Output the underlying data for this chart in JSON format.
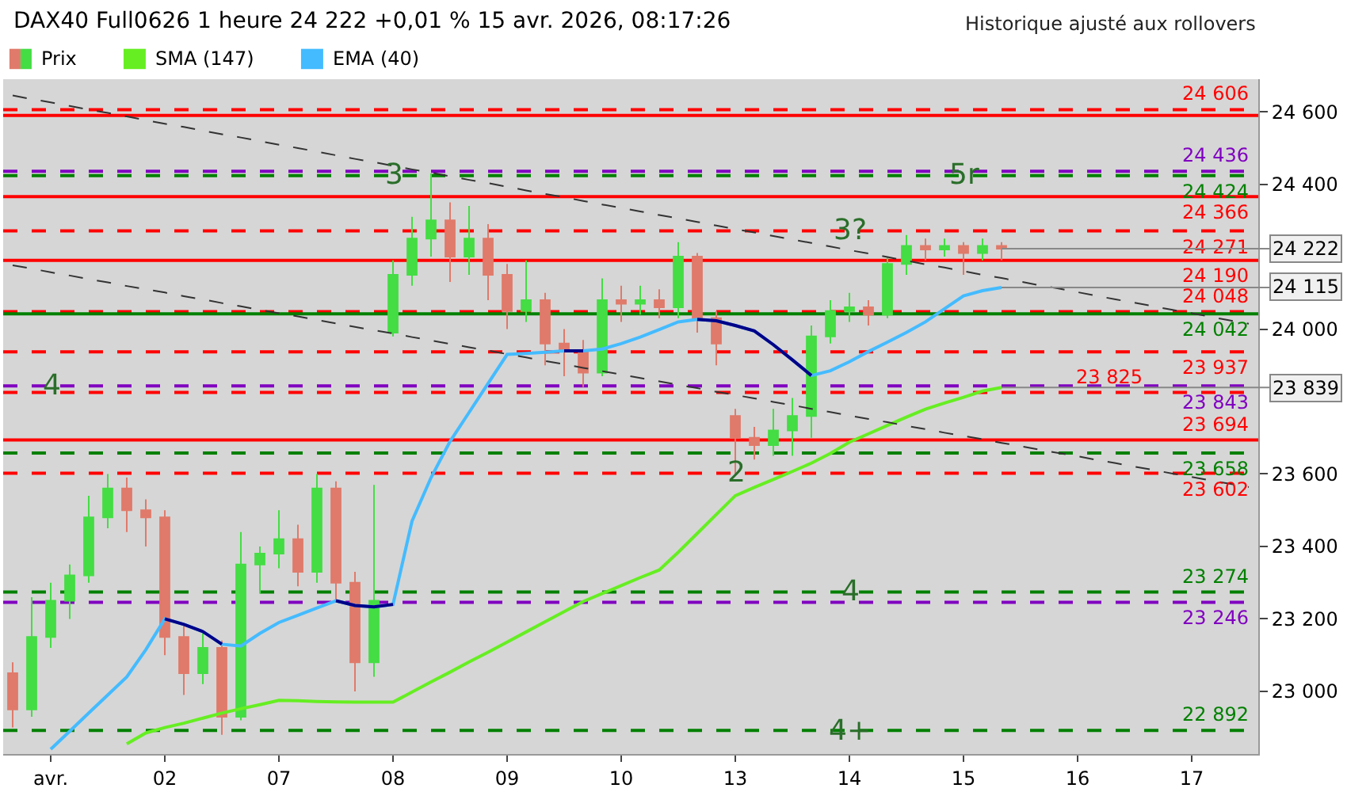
{
  "chart_data": {
    "type": "candlestick",
    "title": "DAX40 Full0626 1 heure 24 222 +0,01 % 15 avr. 2026, 08:17:26",
    "categories": [
      null,
      null,
      "avr.",
      null,
      null,
      null,
      null,
      null,
      "02",
      null,
      null,
      null,
      null,
      null,
      "07",
      null,
      null,
      null,
      null,
      null,
      "08",
      null,
      null,
      null,
      null,
      null,
      "09",
      null,
      null,
      null,
      null,
      null,
      "10",
      null,
      null,
      null,
      null,
      null,
      "13",
      null,
      null,
      null,
      null,
      null,
      "14",
      null,
      null,
      null,
      null,
      null,
      "15",
      null,
      null,
      null,
      null,
      null,
      "16",
      null,
      null,
      null,
      null,
      null,
      "17",
      null,
      null,
      null
    ],
    "ylim": [
      22827,
      24690
    ],
    "yticks": [
      {
        "value": 23000,
        "label": "23 000"
      },
      {
        "value": 23200,
        "label": "23 200"
      },
      {
        "value": 23400,
        "label": "23 400"
      },
      {
        "value": 23600,
        "label": "23 600"
      },
      {
        "value": 24000,
        "label": "24 000"
      },
      {
        "value": 24400,
        "label": "24 400"
      },
      {
        "value": 24600,
        "label": "24 600"
      }
    ],
    "grid": false,
    "legend": "top left",
    "series": [
      {
        "name": "SMA (147)",
        "type": "line",
        "color": "#66ee22",
        "values": [
          null,
          null,
          null,
          null,
          null,
          null,
          22855,
          22885,
          22900,
          22912,
          22926,
          22940,
          22952,
          22963,
          22975,
          22974,
          22972,
          22971,
          22970,
          22970,
          22970,
          22998,
          23026,
          23053,
          23081,
          23108,
          23136,
          23164,
          23192,
          23220,
          23248,
          23270,
          23292,
          23314,
          23335,
          23384,
          23436,
          23488,
          23540,
          23563,
          23585,
          23607,
          23630,
          23657,
          23688,
          23711,
          23734,
          23757,
          23779,
          23796,
          23812,
          23829,
          23839,
          null,
          null,
          null,
          null,
          null,
          null,
          null,
          null,
          null,
          null,
          null,
          null,
          null
        ],
        "value_labels": [
          null,
          null,
          null,
          null,
          null,
          null,
          null,
          null,
          null,
          null,
          null,
          null,
          null,
          null,
          null,
          null,
          null,
          null,
          null,
          null,
          null,
          null,
          null,
          null,
          null,
          null,
          null,
          null,
          null,
          null,
          null,
          null,
          null,
          null,
          null,
          null,
          null,
          null,
          null,
          null,
          null,
          null,
          null,
          null,
          null,
          null,
          null,
          null,
          null,
          null,
          null,
          null,
          "23 839",
          null,
          null,
          null,
          null,
          null,
          null,
          null,
          null,
          null,
          null,
          null,
          null,
          null
        ]
      },
      {
        "name": "EMA (40)",
        "type": "line",
        "color": "#44bbff",
        "values": [
          null,
          null,
          22840,
          22890,
          22940,
          22990,
          23040,
          23115,
          23200,
          23185,
          23165,
          23130,
          23125,
          23160,
          23190,
          23210,
          23230,
          23250,
          23237,
          23233,
          23240,
          23470,
          23590,
          23690,
          23770,
          23850,
          23930,
          23933,
          23936,
          23940,
          23940,
          23945,
          23960,
          23978,
          23999,
          24020,
          24027,
          24023,
          24010,
          23995,
          23957,
          23915,
          23872,
          23885,
          23910,
          23938,
          23964,
          23991,
          24020,
          24056,
          24092,
          24106,
          24115,
          null,
          null,
          null,
          null,
          null,
          null,
          null,
          null,
          null,
          null,
          null,
          null,
          null
        ],
        "value_labels": [
          null,
          null,
          null,
          null,
          null,
          null,
          null,
          null,
          null,
          null,
          null,
          null,
          null,
          null,
          null,
          null,
          null,
          null,
          null,
          null,
          null,
          null,
          null,
          null,
          null,
          null,
          null,
          null,
          null,
          null,
          null,
          null,
          null,
          null,
          null,
          null,
          null,
          null,
          null,
          null,
          null,
          null,
          null,
          null,
          null,
          null,
          null,
          null,
          null,
          null,
          null,
          null,
          "24 115",
          null,
          null,
          null,
          null,
          null,
          null,
          null,
          null,
          null,
          null,
          null,
          null,
          null
        ]
      },
      {
        "type": "line",
        "color": "#000088",
        "values": [
          null,
          null,
          null,
          null,
          null,
          null,
          null,
          null,
          23200,
          23185,
          23165,
          23130,
          null,
          null,
          null,
          null,
          null,
          23250,
          23237,
          23233,
          23240,
          null,
          null,
          null,
          null,
          null,
          null,
          null,
          null,
          23940,
          23940,
          null,
          null,
          null,
          null,
          null,
          24027,
          24023,
          24010,
          23995,
          23957,
          23915,
          23872,
          null,
          null,
          null,
          null,
          null,
          null,
          null,
          null,
          null,
          null,
          null,
          null,
          null,
          null,
          null,
          null,
          null,
          null,
          null,
          null,
          null,
          null,
          null
        ]
      },
      {
        "type": "line",
        "color": "#333333",
        "line_style": "dashed",
        "values": [
          24645,
          24635,
          24626,
          24616,
          24606,
          24597,
          24587,
          24577,
          24567,
          24558,
          24548,
          24538,
          24529,
          24519,
          24509,
          24500,
          24490,
          24480,
          24470,
          24461,
          24451,
          24441,
          24432,
          24422,
          24412,
          24403,
          24393,
          24383,
          24373,
          24364,
          24354,
          24344,
          24335,
          24325,
          24315,
          24306,
          24296,
          24286,
          24276,
          24267,
          24257,
          24247,
          24238,
          24228,
          24218,
          24209,
          24199,
          24189,
          24179,
          24170,
          24160,
          24150,
          24141,
          24131,
          24121,
          24112,
          24102,
          24092,
          24082,
          24073,
          24063,
          24053,
          24044,
          24034,
          24024,
          24015
        ]
      },
      {
        "type": "line",
        "color": "#333333",
        "line_style": "dashed",
        "values": [
          24176,
          24167,
          24157,
          24148,
          24138,
          24129,
          24119,
          24110,
          24101,
          24091,
          24082,
          24072,
          24063,
          24053,
          24044,
          24035,
          24025,
          24016,
          24006,
          23997,
          23988,
          23978,
          23969,
          23959,
          23950,
          23941,
          23931,
          23922,
          23912,
          23903,
          23893,
          23884,
          23875,
          23865,
          23856,
          23846,
          23837,
          23827,
          23818,
          23809,
          23799,
          23790,
          23780,
          23771,
          23761,
          23752,
          23743,
          23733,
          23724,
          23714,
          23705,
          23696,
          23686,
          23677,
          23667,
          23658,
          23649,
          23639,
          23630,
          23620,
          23611,
          23601,
          23592,
          23582,
          23573,
          23564
        ]
      },
      {
        "name": "Prix",
        "ohlc": [
          [
            23050,
            23080,
            22900,
            22950
          ],
          [
            22950,
            23260,
            22930,
            23150
          ],
          [
            23150,
            23300,
            23120,
            23250
          ],
          [
            23250,
            23350,
            23200,
            23320
          ],
          [
            23320,
            23540,
            23300,
            23480
          ],
          [
            23480,
            23600,
            23450,
            23560
          ],
          [
            23560,
            23590,
            23440,
            23500
          ],
          [
            23500,
            23530,
            23400,
            23480
          ],
          [
            23480,
            23500,
            23100,
            23150
          ],
          [
            23150,
            23180,
            22990,
            23050
          ],
          [
            23050,
            23160,
            23020,
            23120
          ],
          [
            23120,
            23140,
            22880,
            22930
          ],
          [
            22930,
            23440,
            22920,
            23350
          ],
          [
            23350,
            23400,
            23270,
            23380
          ],
          [
            23380,
            23500,
            23340,
            23420
          ],
          [
            23420,
            23460,
            23290,
            23330
          ],
          [
            23330,
            23600,
            23300,
            23560
          ],
          [
            23560,
            23580,
            23250,
            23300
          ],
          [
            23300,
            23330,
            23000,
            23080
          ],
          [
            23080,
            23570,
            23040,
            23250
          ],
          [
            23990,
            24190,
            23980,
            24150
          ],
          [
            24150,
            24310,
            24120,
            24250
          ],
          [
            24250,
            24430,
            24200,
            24300
          ],
          [
            24300,
            24350,
            24130,
            24200
          ],
          [
            24200,
            24340,
            24150,
            24250
          ],
          [
            24250,
            24290,
            24080,
            24150
          ],
          [
            24150,
            24180,
            24000,
            24050
          ],
          [
            24050,
            24190,
            24020,
            24080
          ],
          [
            24080,
            24100,
            23900,
            23960
          ],
          [
            23960,
            24000,
            23870,
            23940
          ],
          [
            23940,
            23970,
            23840,
            23880
          ],
          [
            23880,
            24140,
            23870,
            24080
          ],
          [
            24080,
            24120,
            24020,
            24070
          ],
          [
            24070,
            24120,
            24040,
            24080
          ],
          [
            24080,
            24110,
            24030,
            24060
          ],
          [
            24060,
            24240,
            24030,
            24200
          ],
          [
            24200,
            24210,
            23990,
            24030
          ],
          [
            24030,
            24050,
            23900,
            23960
          ],
          [
            23760,
            23780,
            23600,
            23700
          ],
          [
            23700,
            23730,
            23640,
            23680
          ],
          [
            23680,
            23780,
            23650,
            23720
          ],
          [
            23720,
            23810,
            23650,
            23760
          ],
          [
            23760,
            24010,
            23700,
            23980
          ],
          [
            23980,
            24080,
            23960,
            24050
          ],
          [
            24050,
            24100,
            24020,
            24060
          ],
          [
            24060,
            24080,
            24010,
            24040
          ],
          [
            24040,
            24200,
            24030,
            24180
          ],
          [
            24180,
            24260,
            24150,
            24230
          ],
          [
            24230,
            24250,
            24190,
            24220
          ],
          [
            24220,
            24250,
            24200,
            24230
          ],
          [
            24230,
            24240,
            24150,
            24210
          ],
          [
            24210,
            24250,
            24190,
            24230
          ],
          [
            24230,
            24240,
            24190,
            24222
          ],
          null,
          null,
          null,
          null,
          null,
          null,
          null,
          null,
          null,
          null,
          null,
          null,
          null
        ],
        "colors": [
          "#e07a6a",
          "#44dd44",
          "#44dd44",
          "#44dd44",
          "#44dd44",
          "#44dd44",
          "#e07a6a",
          "#e07a6a",
          "#e07a6a",
          "#e07a6a",
          "#44dd44",
          "#e07a6a",
          "#44dd44",
          "#44dd44",
          "#44dd44",
          "#e07a6a",
          "#44dd44",
          "#e07a6a",
          "#e07a6a",
          "#44dd44",
          "#44dd44",
          "#44dd44",
          "#44dd44",
          "#e07a6a",
          "#44dd44",
          "#e07a6a",
          "#e07a6a",
          "#44dd44",
          "#e07a6a",
          "#e07a6a",
          "#e07a6a",
          "#44dd44",
          "#e07a6a",
          "#44dd44",
          "#e07a6a",
          "#44dd44",
          "#e07a6a",
          "#e07a6a",
          "#e07a6a",
          "#e07a6a",
          "#44dd44",
          "#44dd44",
          "#44dd44",
          "#44dd44",
          "#44dd44",
          "#e07a6a",
          "#44dd44",
          "#44dd44",
          "#e07a6a",
          "#44dd44",
          "#e07a6a",
          "#44dd44",
          "#e07a6a",
          null,
          null,
          null,
          null,
          null,
          null,
          null,
          null,
          null,
          null,
          null,
          null,
          null
        ],
        "value_labels": [
          null,
          null,
          null,
          null,
          null,
          null,
          null,
          null,
          null,
          null,
          null,
          null,
          null,
          null,
          null,
          null,
          null,
          null,
          null,
          null,
          null,
          null,
          null,
          null,
          null,
          null,
          null,
          null,
          null,
          null,
          null,
          null,
          null,
          null,
          null,
          null,
          null,
          null,
          null,
          null,
          null,
          null,
          null,
          null,
          null,
          null,
          null,
          null,
          null,
          null,
          null,
          null,
          "24 222",
          null,
          null,
          null,
          null,
          null,
          null,
          null,
          null,
          null,
          null,
          null,
          null,
          null
        ]
      }
    ],
    "ref_lines": [
      {
        "axis": "y",
        "value": 24606,
        "label": "24 606",
        "color": "#ff0000",
        "line_style": "dashed"
      },
      {
        "axis": "y",
        "value": 24590,
        "label": null,
        "color": "#ff0000",
        "line_style": "solid"
      },
      {
        "axis": "y",
        "value": 24436,
        "label": "24 436",
        "color": "#8000c0",
        "line_style": "dashed"
      },
      {
        "axis": "y",
        "value": 24424,
        "label": "24 424",
        "color": "#008000",
        "line_style": "dashed"
      },
      {
        "axis": "y",
        "value": 24366,
        "label": "24 366",
        "color": "#ff0000",
        "line_style": "solid"
      },
      {
        "axis": "y",
        "value": 24271,
        "label": "24 271",
        "color": "#ff0000",
        "line_style": "dashed"
      },
      {
        "axis": "y",
        "value": 24190,
        "label": "24 190",
        "color": "#ff0000",
        "line_style": "solid"
      },
      {
        "axis": "y",
        "value": 24048,
        "label": "24 048",
        "color": "#ff0000",
        "line_style": "dashed"
      },
      {
        "axis": "y",
        "value": 24042,
        "label": "24 042",
        "color": "#008000",
        "line_style": "solid"
      },
      {
        "axis": "y",
        "value": 23937,
        "label": "23 937",
        "color": "#ff0000",
        "line_style": "dashed"
      },
      {
        "axis": "y",
        "value": 23843,
        "label": "23 843",
        "color": "#8000c0",
        "line_style": "dashed"
      },
      {
        "axis": "y",
        "value": 23825,
        "label": "23 825",
        "color": "#ff0000",
        "line_style": "dashed"
      },
      {
        "axis": "y",
        "value": 23694,
        "label": "23 694",
        "color": "#ff0000",
        "line_style": "solid"
      },
      {
        "axis": "y",
        "value": 23658,
        "label": "23 658",
        "color": "#008000",
        "line_style": "dashed"
      },
      {
        "axis": "y",
        "value": 23602,
        "label": "23 602",
        "color": "#ff0000",
        "line_style": "dashed"
      },
      {
        "axis": "y",
        "value": 23274,
        "label": "23 274",
        "color": "#008000",
        "line_style": "dashed"
      },
      {
        "axis": "y",
        "value": 23246,
        "label": "23 246",
        "color": "#8000c0",
        "line_style": "dashed"
      },
      {
        "axis": "y",
        "value": 22892,
        "label": "22 892",
        "color": "#008000",
        "line_style": "dashed"
      }
    ],
    "annotations": [
      {
        "text": "3",
        "x": "08",
        "y": 24424
      },
      {
        "text": "5r",
        "x": "15",
        "y": 24424
      },
      {
        "text": "3?",
        "x": "14",
        "y": 24271
      },
      {
        "text": "4",
        "x": "avr.",
        "y": 23843
      },
      {
        "text": "2",
        "x": "13",
        "y": 23602
      },
      {
        "text": "4",
        "x": "14",
        "y": 23274
      },
      {
        "text": "4+",
        "x": "14",
        "y": 22892
      },
      "Historique ajusté aux rollovers"
    ]
  }
}
